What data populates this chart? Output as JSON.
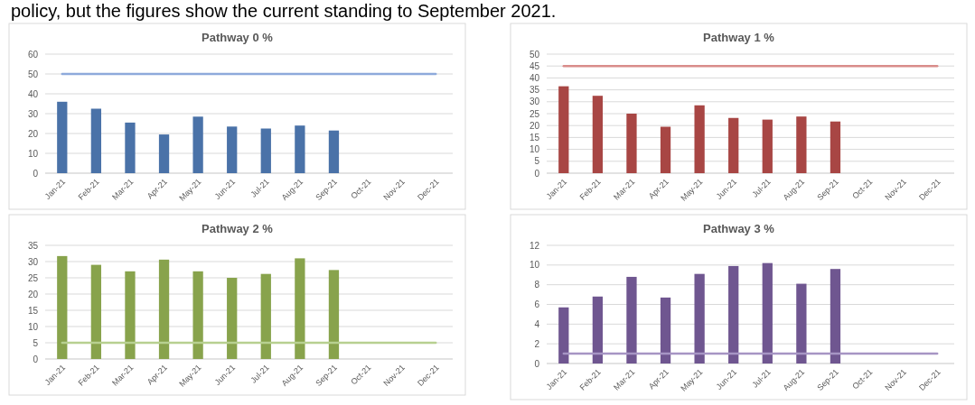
{
  "chart_data": [
    {
      "type": "bar",
      "title": "Pathway 0 %",
      "annotations": [
        "policy, but the figures show the current standing to September 2021."
      ],
      "categories": [
        "Jan-21",
        "Feb-21",
        "Mar-21",
        "Apr-21",
        "May-21",
        "Jun-21",
        "Jul-21",
        "Aug-21",
        "Sep-21",
        "Oct-21",
        "Nov-21",
        "Dec-21"
      ],
      "ylim": [
        0,
        60
      ],
      "yticks": [
        0,
        10,
        20,
        30,
        40,
        50,
        60
      ],
      "grid": "y",
      "series": [
        {
          "color": "#4a72a8",
          "values": [
            36,
            32.5,
            25.5,
            19.5,
            28.5,
            23.5,
            22.5,
            24,
            21.5,
            null,
            null,
            null
          ]
        },
        {
          "type": "line",
          "color": "#8eaadb",
          "values": [
            50,
            50,
            50,
            50,
            50,
            50,
            50,
            50,
            50,
            50,
            50,
            50
          ]
        }
      ]
    },
    {
      "type": "bar",
      "title": "Pathway 1 %",
      "categories": [
        "Jan-21",
        "Feb-21",
        "Mar-21",
        "Apr-21",
        "May-21",
        "Jun-21",
        "Jul-21",
        "Aug-21",
        "Sep-21",
        "Oct-21",
        "Nov-21",
        "Dec-21"
      ],
      "ylim": [
        0,
        50
      ],
      "yticks": [
        0,
        5,
        10,
        15,
        20,
        25,
        30,
        35,
        40,
        45,
        50
      ],
      "grid": "y",
      "series": [
        {
          "color": "#a84644",
          "values": [
            36.5,
            32.5,
            25,
            19.5,
            28.5,
            23.2,
            22.5,
            23.8,
            21.7,
            null,
            null,
            null
          ]
        },
        {
          "type": "line",
          "color": "#d98c8a",
          "values": [
            45,
            45,
            45,
            45,
            45,
            45,
            45,
            45,
            45,
            45,
            45,
            45
          ]
        }
      ]
    },
    {
      "type": "bar",
      "title": "Pathway 2 %",
      "categories": [
        "Jan-21",
        "Feb-21",
        "Mar-21",
        "Apr-21",
        "May-21",
        "Jun-21",
        "Jul-21",
        "Aug-21",
        "Sep-21",
        "Oct-21",
        "Nov-21",
        "Dec-21"
      ],
      "ylim": [
        0,
        35
      ],
      "yticks": [
        0,
        5,
        10,
        15,
        20,
        25,
        30,
        35
      ],
      "grid": "y",
      "series": [
        {
          "color": "#88a34c",
          "values": [
            31.7,
            29,
            27,
            30.6,
            27,
            25,
            26.2,
            31,
            27.4,
            null,
            null,
            null
          ]
        },
        {
          "type": "line",
          "color": "#b7d090",
          "values": [
            5,
            5,
            5,
            5,
            5,
            5,
            5,
            5,
            5,
            5,
            5,
            5
          ]
        }
      ]
    },
    {
      "type": "bar",
      "title": "Pathway 3 %",
      "categories": [
        "Jan-21",
        "Feb-21",
        "Mar-21",
        "Apr-21",
        "May-21",
        "Jun-21",
        "Jul-21",
        "Aug-21",
        "Sep-21",
        "Oct-21",
        "Nov-21",
        "Dec-21"
      ],
      "ylim": [
        0,
        12
      ],
      "yticks": [
        0,
        2,
        4,
        6,
        8,
        10,
        12
      ],
      "grid": "y",
      "series": [
        {
          "color": "#6f5690",
          "values": [
            5.7,
            6.8,
            8.8,
            6.7,
            9.1,
            9.9,
            10.2,
            8.1,
            9.6,
            null,
            null,
            null
          ]
        },
        {
          "type": "line",
          "color": "#a695c4",
          "values": [
            1,
            1,
            1,
            1,
            1,
            1,
            1,
            1,
            1,
            1,
            1,
            1
          ]
        }
      ]
    }
  ]
}
